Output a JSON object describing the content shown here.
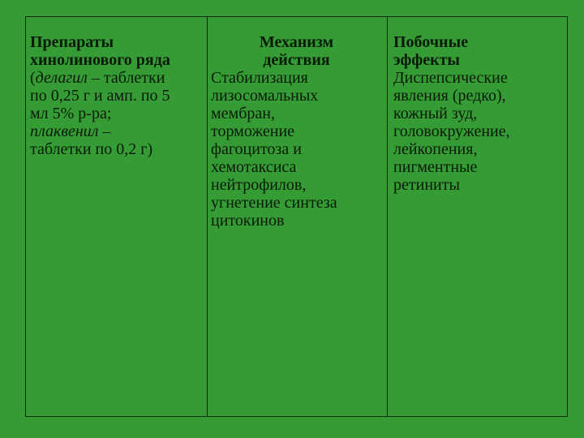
{
  "colors": {
    "background": "#359b34",
    "text": "#0a1a08",
    "border": "#0d2a0b"
  },
  "table": {
    "col1": {
      "header": [
        "Препараты",
        "хинолинового ряда"
      ],
      "drug1_open": "(",
      "drug1_name": "делагил",
      "drug1_rest": " – таблетки",
      "lines_a": [
        "по 0,25 г и амп. по 5",
        "мл 5% р-ра;"
      ],
      "drug2_name": "плаквенил",
      "drug2_rest": " –",
      "lines_b": [
        "таблетки по 0,2 г)"
      ]
    },
    "col2": {
      "header": [
        "Механизм",
        "действия"
      ],
      "lines": [
        "Стабилизация",
        "лизосомальных",
        "мембран,",
        "торможение",
        "фагоцитоза и",
        "хемотаксиса",
        "нейтрофилов,",
        "угнетение синтеза",
        "цитокинов"
      ]
    },
    "col3": {
      "header": [
        "Побочные",
        "эффекты"
      ],
      "lines": [
        "Диспепсические",
        "явления (редко),",
        "кожный зуд,",
        "головокружение,",
        "лейкопения,",
        "пигментные",
        "ретиниты"
      ]
    }
  }
}
